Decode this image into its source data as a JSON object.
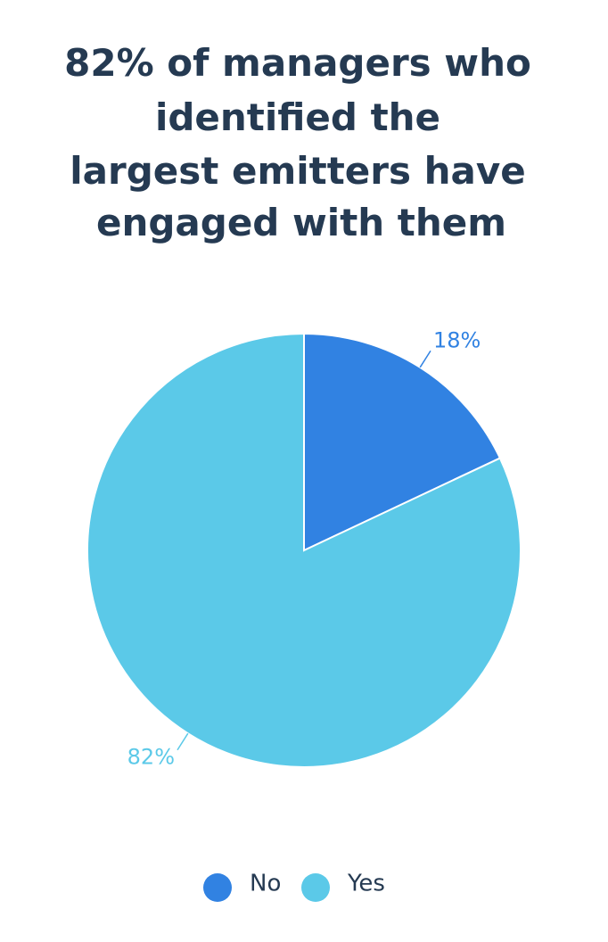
{
  "chart_data": {
    "type": "pie",
    "title": [
      "82% of managers who",
      "identified the",
      "largest emitters have",
      "engaged with them"
    ],
    "categories": [
      "No",
      "Yes"
    ],
    "values": [
      18,
      82
    ],
    "value_labels": [
      "18%",
      "82%"
    ],
    "colors": [
      "#3182e2",
      "#5bc9e8"
    ],
    "legend": "bottom"
  }
}
